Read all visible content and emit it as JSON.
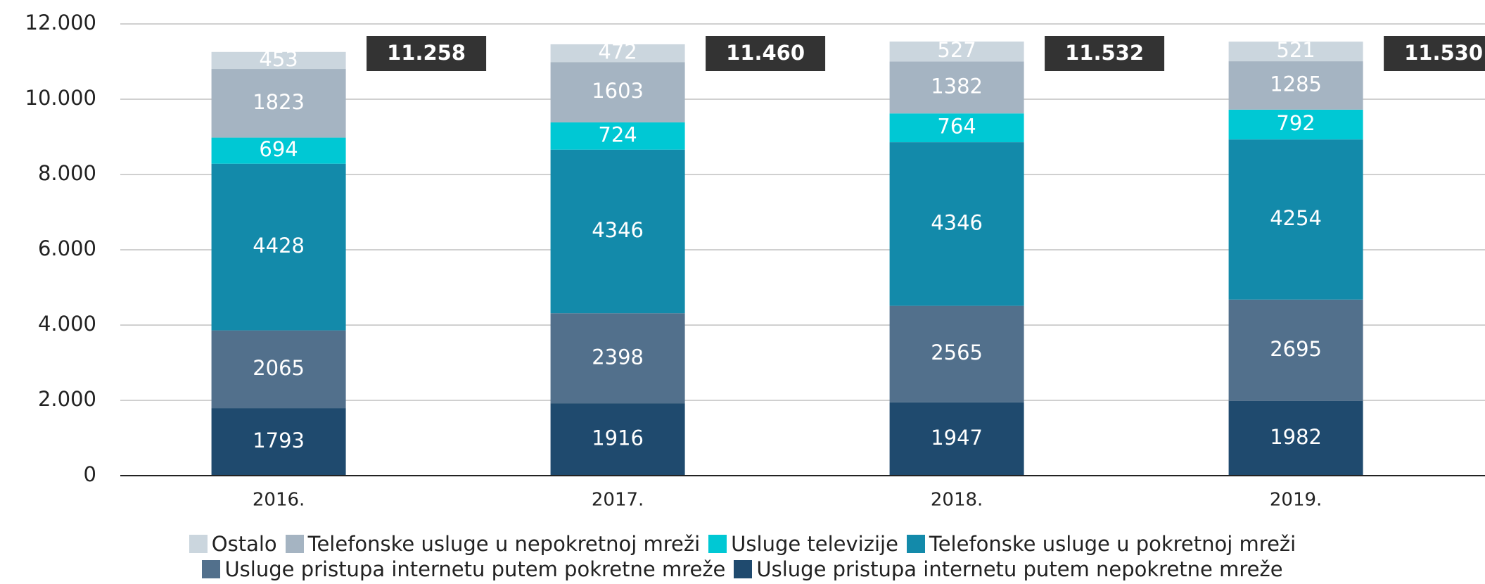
{
  "chart_data": {
    "type": "stacked_bar",
    "categories": [
      "2016.",
      "2017.",
      "2018.",
      "2019."
    ],
    "series": [
      {
        "name": "Usluge pristupa internetu putem nepokretne mreže",
        "color": "#1f4a6e",
        "values": [
          1793,
          1916,
          1947,
          1982
        ]
      },
      {
        "name": "Usluge pristupa internetu putem pokretne mreže",
        "color": "#52708c",
        "values": [
          2065,
          2398,
          2565,
          2695
        ]
      },
      {
        "name": "Telefonske usluge u pokretnoj mreži",
        "color": "#138aaa",
        "values": [
          4428,
          4346,
          4346,
          4254
        ]
      },
      {
        "name": "Usluge televizije",
        "color": "#00c8d4",
        "values": [
          694,
          724,
          764,
          792
        ]
      },
      {
        "name": "Telefonske usluge u nepokretnoj mreži",
        "color": "#a5b4c2",
        "values": [
          1823,
          1603,
          1382,
          1285
        ]
      },
      {
        "name": "Ostalo",
        "color": "#cbd6de",
        "values": [
          453,
          472,
          527,
          521
        ]
      }
    ],
    "legend_order": [
      5,
      4,
      3,
      2,
      1,
      0
    ],
    "totals": [
      {
        "value": 11258,
        "label": "11.258"
      },
      {
        "value": 11460,
        "label": "11.460"
      },
      {
        "value": 11532,
        "label": "11.532"
      },
      {
        "value": 11530,
        "label": "11.530"
      }
    ],
    "ylim": [
      0,
      12000
    ],
    "yticks": [
      {
        "value": 0,
        "label": "0"
      },
      {
        "value": 2000,
        "label": "2.000"
      },
      {
        "value": 4000,
        "label": "4.000"
      },
      {
        "value": 6000,
        "label": "6.000"
      },
      {
        "value": 8000,
        "label": "8.000"
      },
      {
        "value": 10000,
        "label": "10.000"
      },
      {
        "value": 12000,
        "label": "12.000"
      }
    ],
    "grid": true
  }
}
